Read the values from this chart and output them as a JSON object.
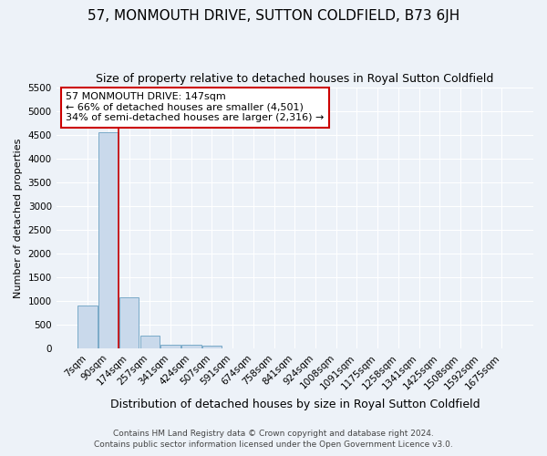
{
  "title": "57, MONMOUTH DRIVE, SUTTON COLDFIELD, B73 6JH",
  "subtitle": "Size of property relative to detached houses in Royal Sutton Coldfield",
  "xlabel": "Distribution of detached houses by size in Royal Sutton Coldfield",
  "ylabel": "Number of detached properties",
  "footnote1": "Contains HM Land Registry data © Crown copyright and database right 2024.",
  "footnote2": "Contains public sector information licensed under the Open Government Licence v3.0.",
  "bar_labels": [
    "7sqm",
    "90sqm",
    "174sqm",
    "257sqm",
    "341sqm",
    "424sqm",
    "507sqm",
    "591sqm",
    "674sqm",
    "758sqm",
    "841sqm",
    "924sqm",
    "1008sqm",
    "1091sqm",
    "1175sqm",
    "1258sqm",
    "1341sqm",
    "1425sqm",
    "1508sqm",
    "1592sqm",
    "1675sqm"
  ],
  "bar_values": [
    900,
    4550,
    1075,
    275,
    85,
    75,
    55,
    0,
    0,
    0,
    0,
    0,
    0,
    0,
    0,
    0,
    0,
    0,
    0,
    0,
    0
  ],
  "bar_color": "#c9d9eb",
  "bar_edge_color": "#7aaac8",
  "red_line_x": 1.5,
  "ylim": [
    0,
    5500
  ],
  "yticks": [
    0,
    500,
    1000,
    1500,
    2000,
    2500,
    3000,
    3500,
    4000,
    4500,
    5000,
    5500
  ],
  "annotation_text": "57 MONMOUTH DRIVE: 147sqm\n← 66% of detached houses are smaller (4,501)\n34% of semi-detached houses are larger (2,316) →",
  "annotation_box_facecolor": "#ffffff",
  "annotation_box_edgecolor": "#cc0000",
  "bg_color": "#edf2f8",
  "grid_color": "#ffffff",
  "property_line_color": "#cc0000",
  "title_fontsize": 11,
  "subtitle_fontsize": 9,
  "ylabel_fontsize": 8,
  "xlabel_fontsize": 9,
  "tick_fontsize": 7.5,
  "annotation_fontsize": 8,
  "footnote_fontsize": 6.5
}
